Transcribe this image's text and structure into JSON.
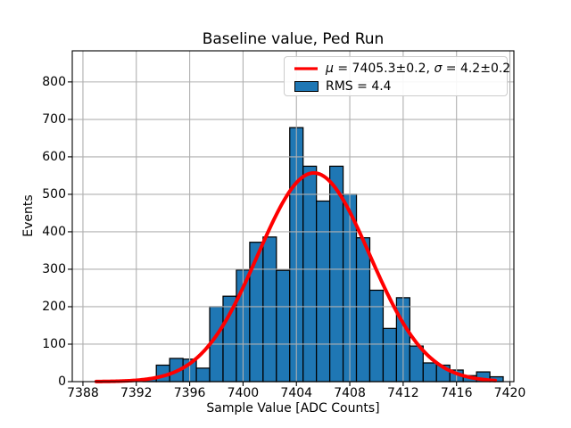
{
  "title": "Baseline value, Ped Run",
  "axes": {
    "xlabel": "Sample Value [ADC Counts]",
    "ylabel": "Events",
    "x_ticks": [
      7388,
      7392,
      7396,
      7400,
      7404,
      7408,
      7412,
      7416,
      7420
    ],
    "y_ticks": [
      0,
      100,
      200,
      300,
      400,
      500,
      600,
      700,
      800
    ],
    "xlim": [
      7387.2,
      7420.3
    ],
    "ylim": [
      0,
      883
    ],
    "grid": true
  },
  "legend": {
    "position": "upper right",
    "line_label": "μ = 7405.3±0.2, σ = 4.2±0.2",
    "line_label_parts": [
      "μ",
      " = 7405.3±0.2, ",
      "σ",
      " = 4.2±0.2"
    ],
    "hist_label": "RMS = 4.4"
  },
  "chart_data": {
    "type": "bar",
    "subtype": "histogram-with-gaussian-fit",
    "title": "Baseline value, Ped Run",
    "xlabel": "Sample Value [ADC Counts]",
    "ylabel": "Events",
    "bin_width": 1,
    "bin_centers": [
      7393,
      7394,
      7395,
      7396,
      7397,
      7398,
      7399,
      7400,
      7401,
      7402,
      7403,
      7404,
      7405,
      7406,
      7407,
      7408,
      7409,
      7410,
      7411,
      7412,
      7413,
      7414,
      7415,
      7416,
      7417,
      7418,
      7419
    ],
    "counts": [
      8,
      44,
      62,
      60,
      36,
      200,
      228,
      298,
      372,
      386,
      297,
      678,
      575,
      482,
      575,
      500,
      384,
      244,
      142,
      224,
      95,
      50,
      44,
      31,
      16,
      26,
      13
    ],
    "fit": {
      "mu": 7405.3,
      "mu_err": 0.2,
      "sigma": 4.2,
      "sigma_err": 0.2,
      "amplitude": 557,
      "rms": 4.4,
      "x_start": 7389.0,
      "x_end": 7418.9
    },
    "colors": {
      "bar_fill": "#1f77b4",
      "bar_edge": "#000000",
      "fit_line": "#ff0000",
      "grid": "#b0b0b0",
      "spine": "#000000"
    }
  }
}
